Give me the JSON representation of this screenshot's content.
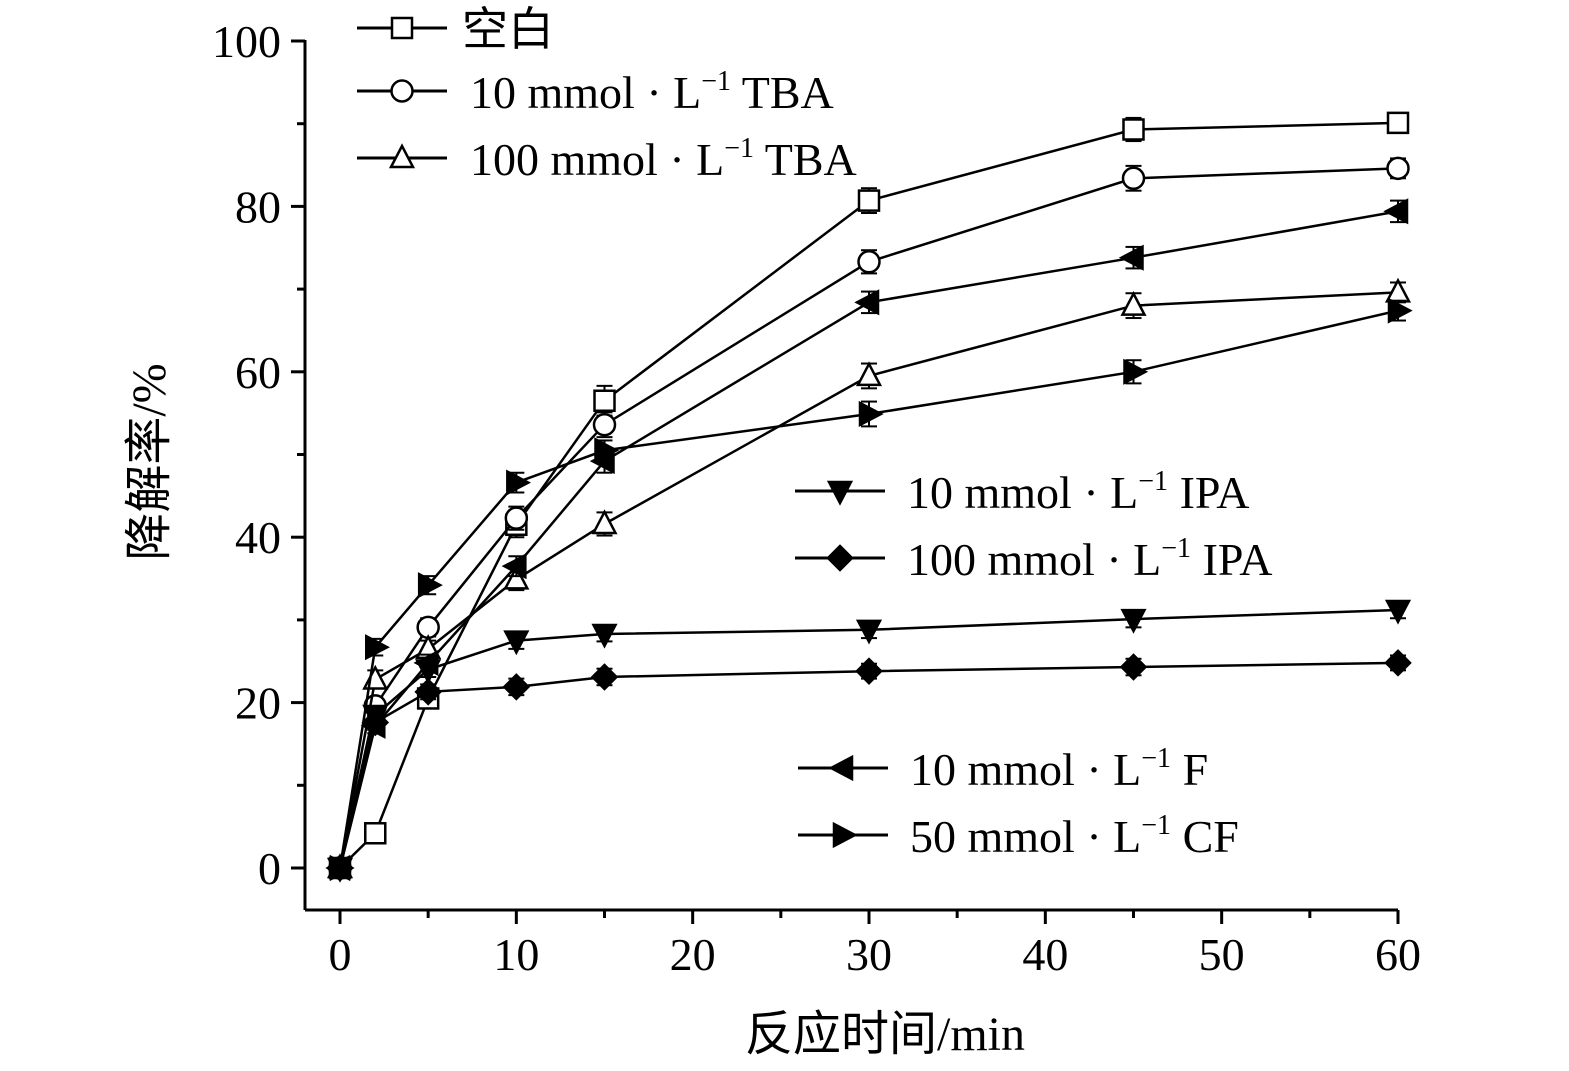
{
  "chart_data": {
    "type": "line",
    "xlabel": "反应时间/min",
    "ylabel": "降解率/%",
    "xlim": [
      -2,
      60
    ],
    "ylim": [
      -5,
      100
    ],
    "xticks": [
      0,
      10,
      20,
      30,
      40,
      50,
      60
    ],
    "yticks": [
      0,
      20,
      40,
      60,
      80,
      100
    ],
    "x": [
      0,
      2,
      5,
      10,
      15,
      30,
      45,
      60
    ],
    "series": [
      {
        "name": "空白",
        "marker": "square-open",
        "values": [
          0,
          4.2,
          20.5,
          41.5,
          56.5,
          80.7,
          89.3,
          90.1
        ],
        "errors": [
          0,
          0.8,
          1.0,
          1.5,
          1.8,
          1.5,
          1.4,
          1.2
        ]
      },
      {
        "name": "10 mmol · L⁻¹ TBA",
        "marker": "circle-open",
        "values": [
          0,
          19.6,
          29.1,
          42.3,
          53.6,
          73.3,
          83.4,
          84.6
        ],
        "errors": [
          0,
          1.0,
          1.1,
          1.4,
          1.5,
          1.4,
          1.5,
          1.2
        ]
      },
      {
        "name": "100 mmol · L⁻¹ TBA",
        "marker": "triangle-up-open",
        "values": [
          0,
          22.8,
          26.5,
          34.9,
          41.6,
          59.5,
          68.0,
          69.6
        ],
        "errors": [
          0,
          1.1,
          1.0,
          1.3,
          1.4,
          1.5,
          1.5,
          1.2
        ]
      },
      {
        "name": "10 mmol · L⁻¹ IPA",
        "marker": "triangle-down-filled",
        "values": [
          0,
          18.5,
          24.0,
          27.5,
          28.3,
          28.8,
          30.1,
          31.2
        ],
        "errors": [
          0,
          0.9,
          0.9,
          1.0,
          0.9,
          1.0,
          1.0,
          1.0
        ]
      },
      {
        "name": "100 mmol · L⁻¹ IPA",
        "marker": "diamond-filled",
        "values": [
          0,
          17.6,
          21.3,
          21.9,
          23.1,
          23.8,
          24.3,
          24.8
        ],
        "errors": [
          0,
          0.9,
          0.9,
          1.0,
          1.0,
          0.9,
          1.0,
          0.9
        ]
      },
      {
        "name": "10 mmol · L⁻¹ F",
        "marker": "triangle-left-filled",
        "values": [
          0,
          17.2,
          24.8,
          36.5,
          49.2,
          68.4,
          73.8,
          79.4
        ],
        "errors": [
          0,
          0.9,
          1.0,
          1.2,
          1.4,
          1.3,
          1.3,
          1.3
        ]
      },
      {
        "name": "50 mmol · L⁻¹ CF",
        "marker": "triangle-right-filled",
        "values": [
          0,
          26.7,
          34.2,
          46.6,
          50.5,
          54.9,
          60.0,
          67.4
        ],
        "errors": [
          0,
          1.0,
          1.1,
          1.2,
          1.2,
          1.5,
          1.4,
          1.2
        ]
      }
    ]
  },
  "legend": {
    "blank": {
      "label": "空白"
    },
    "tba10": {
      "prefix": "10 mmol · L",
      "sup": "−1",
      "suffix": " TBA"
    },
    "tba100": {
      "prefix": "100 mmol · L",
      "sup": "−1",
      "suffix": " TBA"
    },
    "ipa10": {
      "prefix": "10 mmol · L",
      "sup": "−1",
      "suffix": " IPA"
    },
    "ipa100": {
      "prefix": "100 mmol · L",
      "sup": "−1",
      "suffix": " IPA"
    },
    "f10": {
      "prefix": "10 mmol · L",
      "sup": "−1",
      "suffix": " F"
    },
    "cf50": {
      "prefix": "50 mmol · L",
      "sup": "−1",
      "suffix": " CF"
    }
  }
}
